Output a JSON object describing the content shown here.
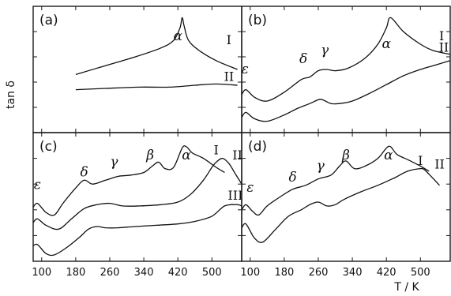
{
  "figure": {
    "ylabel": "tan δ",
    "xlabel": "T / K"
  },
  "chart_data": [
    {
      "type": "line",
      "panel_label": "(a)",
      "xlim": [
        80,
        570
      ],
      "ylim": [
        0,
        10
      ],
      "x_ticks": [
        100,
        180,
        260,
        340,
        420,
        500
      ],
      "peak_labels": [
        {
          "text": "α",
          "x": 420,
          "y": 7.3
        }
      ],
      "series": [
        {
          "name": "I",
          "name_x": 540,
          "name_y": 7.0,
          "x": [
            180,
            250,
            320,
            380,
            410,
            425,
            430,
            435,
            445,
            470,
            510,
            560
          ],
          "y": [
            4.6,
            5.3,
            6.0,
            6.7,
            7.3,
            8.3,
            9.1,
            8.4,
            7.3,
            6.5,
            5.7,
            5.0
          ]
        },
        {
          "name": "II",
          "name_x": 540,
          "name_y": 4.1,
          "x": [
            180,
            250,
            330,
            400,
            460,
            510,
            560
          ],
          "y": [
            3.4,
            3.5,
            3.6,
            3.6,
            3.75,
            3.85,
            3.75
          ]
        }
      ]
    },
    {
      "type": "line",
      "panel_label": "(b)",
      "xlim": [
        80,
        570
      ],
      "ylim": [
        0,
        10
      ],
      "x_ticks": [
        100,
        180,
        260,
        340,
        420,
        500
      ],
      "peak_labels": [
        {
          "text": "ε",
          "x": 88,
          "y": 4.7
        },
        {
          "text": "δ",
          "x": 225,
          "y": 5.5
        },
        {
          "text": "γ",
          "x": 275,
          "y": 6.2
        },
        {
          "text": "α",
          "x": 420,
          "y": 6.7
        }
      ],
      "series": [
        {
          "name": "I",
          "name_x": 550,
          "name_y": 7.3,
          "x": [
            80,
            90,
            110,
            140,
            180,
            220,
            240,
            260,
            280,
            300,
            330,
            370,
            400,
            420,
            430,
            460,
            500,
            530,
            570
          ],
          "y": [
            3.0,
            3.4,
            2.8,
            2.5,
            3.2,
            4.2,
            4.4,
            4.9,
            5.0,
            4.9,
            5.1,
            5.9,
            7.0,
            8.3,
            9.1,
            8.0,
            7.0,
            6.5,
            6.2
          ]
        },
        {
          "name": "II",
          "name_x": 555,
          "name_y": 6.4,
          "x": [
            80,
            90,
            110,
            140,
            180,
            210,
            240,
            260,
            270,
            290,
            310,
            340,
            380,
            420,
            460,
            500,
            530,
            570
          ],
          "y": [
            1.2,
            1.6,
            1.1,
            0.9,
            1.4,
            1.9,
            2.3,
            2.6,
            2.6,
            2.3,
            2.3,
            2.5,
            3.1,
            3.8,
            4.5,
            5.0,
            5.3,
            5.7
          ]
        }
      ]
    },
    {
      "type": "line",
      "panel_label": "(c)",
      "xlim": [
        80,
        570
      ],
      "ylim": [
        0,
        10
      ],
      "x_ticks": [
        100,
        180,
        260,
        340,
        420,
        500
      ],
      "peak_labels": [
        {
          "text": "ε",
          "x": 90,
          "y": 5.6
        },
        {
          "text": "δ",
          "x": 200,
          "y": 6.6
        },
        {
          "text": "γ",
          "x": 270,
          "y": 7.4
        },
        {
          "text": "β",
          "x": 355,
          "y": 7.9
        },
        {
          "text": "α",
          "x": 440,
          "y": 7.9
        }
      ],
      "series": [
        {
          "name": "I",
          "name_x": 510,
          "name_y": 8.3,
          "x": [
            80,
            90,
            110,
            130,
            150,
            180,
            200,
            220,
            250,
            280,
            310,
            340,
            360,
            375,
            390,
            410,
            430,
            440,
            455,
            480,
            510,
            530
          ],
          "y": [
            4.2,
            4.5,
            3.8,
            3.6,
            4.5,
            5.7,
            6.3,
            6.0,
            6.3,
            6.6,
            6.7,
            6.9,
            7.4,
            7.7,
            7.2,
            7.3,
            8.8,
            8.9,
            8.4,
            8.0,
            7.3,
            6.9
          ]
        },
        {
          "name": "II",
          "name_x": 560,
          "name_y": 7.9,
          "x": [
            80,
            90,
            110,
            140,
            170,
            200,
            230,
            260,
            290,
            330,
            380,
            420,
            450,
            480,
            500,
            510,
            525,
            540,
            555,
            570
          ],
          "y": [
            3.0,
            3.3,
            2.8,
            2.5,
            3.3,
            4.1,
            4.4,
            4.5,
            4.3,
            4.3,
            4.4,
            4.6,
            5.2,
            6.3,
            7.3,
            7.7,
            8.0,
            7.6,
            6.8,
            6.0
          ]
        },
        {
          "name": "III",
          "name_x": 555,
          "name_y": 4.8,
          "x": [
            80,
            90,
            110,
            130,
            160,
            190,
            210,
            230,
            250,
            280,
            320,
            370,
            420,
            460,
            500,
            530,
            560,
            570
          ],
          "y": [
            1.2,
            1.3,
            0.6,
            0.5,
            1.1,
            1.9,
            2.5,
            2.7,
            2.6,
            2.6,
            2.7,
            2.8,
            2.9,
            3.1,
            3.5,
            4.3,
            4.4,
            4.3
          ]
        }
      ]
    },
    {
      "type": "line",
      "panel_label": "(d)",
      "xlim": [
        80,
        570
      ],
      "ylim": [
        0,
        10
      ],
      "x_ticks": [
        100,
        180,
        260,
        340,
        420,
        500
      ],
      "peak_labels": [
        {
          "text": "ε",
          "x": 100,
          "y": 5.4
        },
        {
          "text": "δ",
          "x": 200,
          "y": 6.2
        },
        {
          "text": "γ",
          "x": 265,
          "y": 7.1
        },
        {
          "text": "β",
          "x": 325,
          "y": 7.9
        },
        {
          "text": "α",
          "x": 425,
          "y": 7.9
        }
      ],
      "series": [
        {
          "name": "I",
          "name_x": 500,
          "name_y": 7.5,
          "x": [
            80,
            90,
            105,
            120,
            140,
            170,
            200,
            230,
            260,
            290,
            310,
            325,
            345,
            370,
            400,
            420,
            430,
            445,
            470,
            500,
            520
          ],
          "y": [
            4.0,
            4.4,
            3.9,
            3.6,
            4.3,
            5.0,
            5.6,
            5.9,
            6.4,
            6.7,
            7.4,
            7.8,
            7.2,
            7.4,
            8.0,
            8.8,
            8.9,
            8.3,
            7.9,
            7.4,
            7.0
          ]
        },
        {
          "name": "II",
          "name_x": 545,
          "name_y": 7.2,
          "x": [
            80,
            90,
            110,
            130,
            160,
            190,
            220,
            240,
            260,
            280,
            300,
            320,
            360,
            400,
            440,
            470,
            500,
            510,
            525,
            545
          ],
          "y": [
            2.6,
            2.9,
            1.8,
            1.5,
            2.5,
            3.5,
            4.0,
            4.4,
            4.6,
            4.3,
            4.4,
            4.8,
            5.4,
            5.9,
            6.5,
            7.0,
            7.2,
            7.1,
            6.6,
            5.9
          ]
        }
      ]
    }
  ]
}
